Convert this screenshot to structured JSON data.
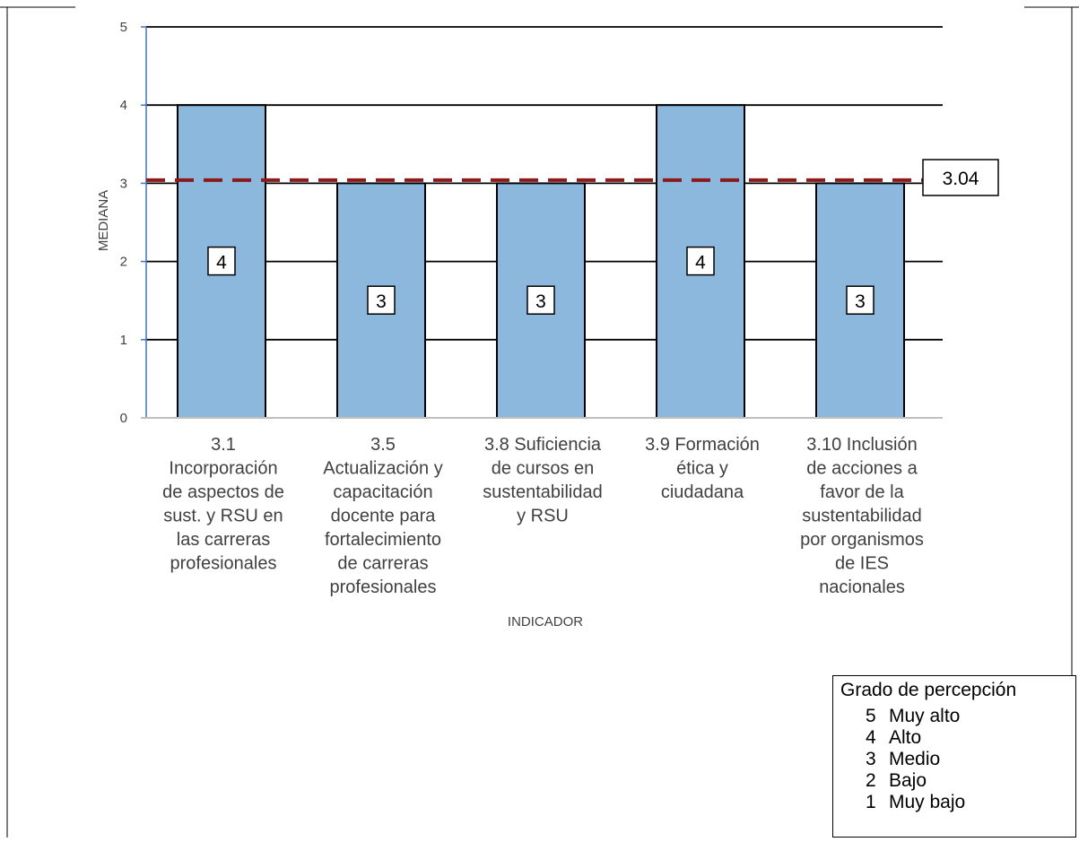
{
  "chart_data": {
    "type": "bar",
    "categories": [
      "3.1 Incorporación de aspectos de sust. y RSU en las carreras profesionales",
      "3.5 Actualización y capacitación docente para fortalecimiento de carreras profesionales",
      "3.8 Suficiencia de cursos en sustentabilidad y RSU",
      "3.9 Formación ética y ciudadana",
      "3.10 Inclusión de acciones a favor de la sustentabilidad por organismos de IES nacionales"
    ],
    "category_lines": [
      [
        "3.1",
        "Incorporación",
        "de aspectos de",
        "sust. y RSU en",
        "las carreras",
        "profesionales"
      ],
      [
        "3.5",
        "Actualización y",
        "capacitación",
        "docente para",
        "fortalecimiento",
        "de carreras",
        "profesionales"
      ],
      [
        "3.8 Suficiencia",
        "de cursos en",
        "sustentabilidad",
        "y RSU"
      ],
      [
        "3.9 Formación",
        "ética y",
        "ciudadana"
      ],
      [
        "3.10 Inclusión",
        "de acciones a",
        "favor de la",
        "sustentabilidad",
        "por organismos",
        "de IES",
        "nacionales"
      ]
    ],
    "values": [
      4,
      3,
      3,
      4,
      3
    ],
    "data_labels": [
      "4",
      "3",
      "3",
      "4",
      "3"
    ],
    "reference_line": {
      "value": 3.04,
      "label": "3.04",
      "style": "dashed",
      "color": "#8b1a1a"
    },
    "xlabel": "INDICADOR",
    "ylabel": "MEDIANA",
    "ylim": [
      0,
      5
    ],
    "yticks": [
      "0",
      "1",
      "2",
      "3",
      "4",
      "5"
    ],
    "grid": true,
    "bar_color": "#8cb8de",
    "bar_edge_color": "#000000",
    "axis_color": "#4472c4"
  },
  "legend": {
    "title": "Grado de percepción",
    "items": [
      {
        "value": "5",
        "label": "Muy alto"
      },
      {
        "value": "4",
        "label": "Alto"
      },
      {
        "value": "3",
        "label": "Medio"
      },
      {
        "value": "2",
        "label": "Bajo"
      },
      {
        "value": "1",
        "label": "Muy bajo"
      }
    ]
  }
}
